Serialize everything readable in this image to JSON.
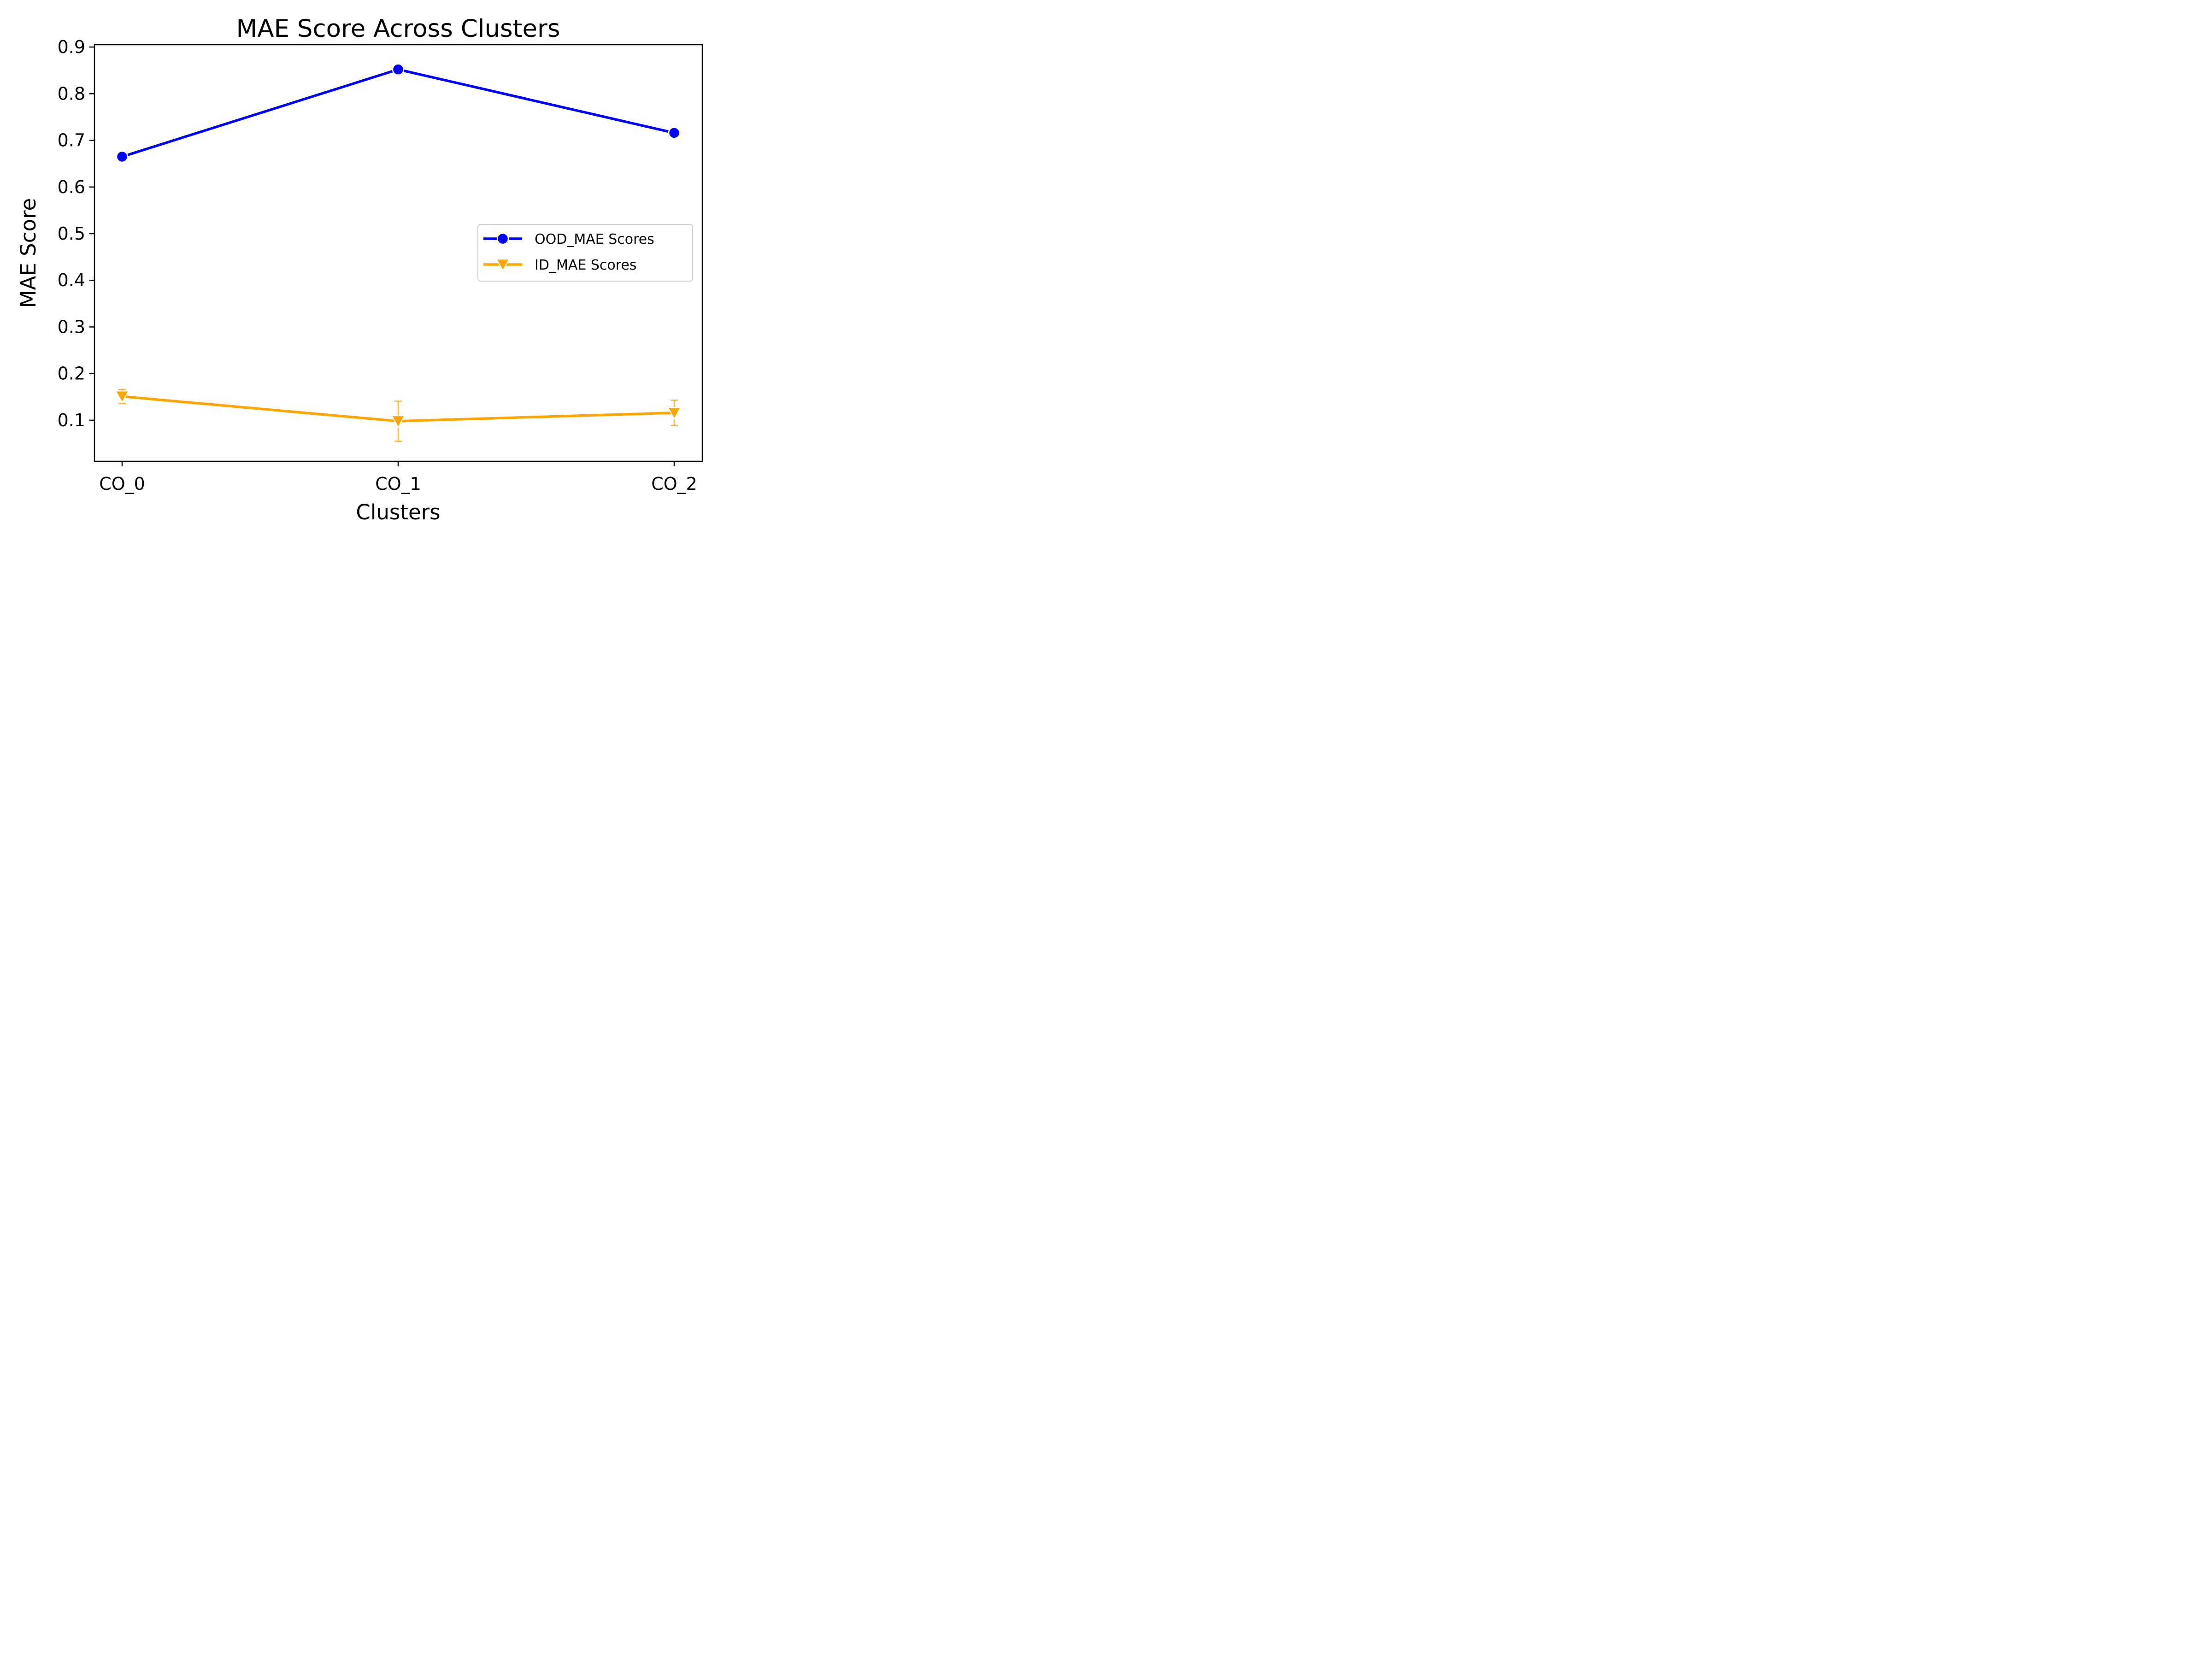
{
  "chart_data": {
    "type": "line",
    "title": "MAE Score Across Clusters",
    "xlabel": "Clusters",
    "ylabel": "MAE Score",
    "categories": [
      "CO_0",
      "CO_1",
      "CO_2"
    ],
    "ylim": [
      0.012,
      0.905
    ],
    "yticks": [
      0.1,
      0.2,
      0.3,
      0.4,
      0.5,
      0.6,
      0.7,
      0.8,
      0.9
    ],
    "grid": false,
    "legend_position": "center-right",
    "series": [
      {
        "name": "OOD_MAE Scores",
        "color": "#0000ff",
        "marker": "circle",
        "values": [
          0.665,
          0.852,
          0.716
        ],
        "error": [
          0.003,
          0.008,
          0.004
        ]
      },
      {
        "name": "ID_MAE Scores",
        "color": "#ffa500",
        "marker": "triangle-down",
        "values": [
          0.151,
          0.098,
          0.116
        ],
        "error": [
          0.015,
          0.043,
          0.027
        ]
      }
    ]
  }
}
